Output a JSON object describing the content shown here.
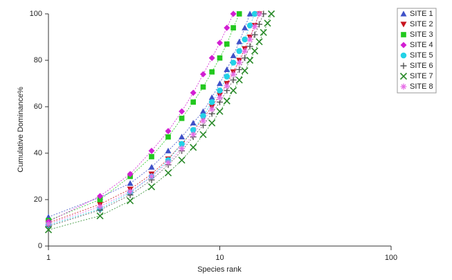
{
  "chart_data": {
    "type": "line",
    "x_label": "Species rank",
    "y_label": "Cumulative Dominance%",
    "x_log": true,
    "xlim": [
      1,
      100
    ],
    "xticks": [
      1,
      10,
      100
    ],
    "ylim": [
      0,
      100
    ],
    "yticks": [
      0,
      20,
      40,
      60,
      80,
      100
    ],
    "grid": false,
    "legend": "top-right",
    "series": [
      {
        "name": "SITE 1",
        "color": "#3f51c8",
        "marker": "triangle-up",
        "x": [
          1,
          2,
          3,
          4,
          5,
          6,
          7,
          8,
          9,
          10,
          11,
          12,
          13,
          14,
          15
        ],
        "values": [
          12.5,
          21,
          27,
          34,
          41,
          47,
          53,
          58,
          64,
          70,
          76,
          82,
          88,
          94,
          100
        ]
      },
      {
        "name": "SITE 2",
        "color": "#c8141e",
        "marker": "triangle-down",
        "x": [
          1,
          2,
          3,
          4,
          5,
          6,
          7,
          8,
          9,
          10,
          11,
          12,
          13,
          14,
          15,
          16,
          17
        ],
        "values": [
          10,
          18,
          24.5,
          31,
          37.5,
          44,
          49.5,
          55,
          60,
          65,
          70,
          75,
          80,
          85,
          90,
          95,
          100
        ]
      },
      {
        "name": "SITE 3",
        "color": "#22c81e",
        "marker": "square",
        "x": [
          1,
          2,
          3,
          4,
          5,
          6,
          7,
          8,
          9,
          10,
          11,
          12,
          13
        ],
        "values": [
          11,
          20,
          30,
          38.5,
          47,
          55,
          62,
          68.5,
          75,
          81,
          87,
          94,
          100
        ]
      },
      {
        "name": "SITE 4",
        "color": "#d21ed2",
        "marker": "diamond",
        "x": [
          1,
          2,
          3,
          4,
          5,
          6,
          7,
          8,
          9,
          10,
          11,
          12
        ],
        "values": [
          10.5,
          21.5,
          31,
          41,
          49.5,
          58,
          66,
          74,
          81,
          87.5,
          94,
          100
        ]
      },
      {
        "name": "SITE 5",
        "color": "#22d2e6",
        "marker": "circle",
        "x": [
          1,
          2,
          3,
          4,
          5,
          6,
          7,
          8,
          9,
          10,
          11,
          12,
          13,
          14,
          15,
          16
        ],
        "values": [
          9,
          16,
          23,
          30,
          37,
          44,
          50,
          56,
          62,
          67,
          73,
          79,
          84,
          89,
          95,
          100
        ]
      },
      {
        "name": "SITE 6",
        "color": "#555555",
        "marker": "plus",
        "x": [
          1,
          2,
          3,
          4,
          5,
          6,
          7,
          8,
          9,
          10,
          11,
          12,
          13,
          14,
          15,
          16,
          17,
          18
        ],
        "values": [
          8.5,
          15.5,
          22,
          28.5,
          35,
          41,
          47,
          52,
          57,
          62,
          67,
          71.5,
          76,
          81,
          86,
          91,
          95.5,
          100
        ]
      },
      {
        "name": "SITE 7",
        "color": "#2a8a2a",
        "marker": "x",
        "x": [
          1,
          2,
          3,
          4,
          5,
          6,
          7,
          8,
          9,
          10,
          11,
          12,
          13,
          14,
          15,
          16,
          17,
          18,
          19,
          20
        ],
        "values": [
          7,
          13,
          19.5,
          25.5,
          31.5,
          37,
          42.5,
          48,
          53,
          58,
          62.5,
          67,
          71.5,
          75.5,
          80,
          84,
          88,
          92,
          96,
          100
        ]
      },
      {
        "name": "SITE 8",
        "color": "#e66ee6",
        "marker": "asterisk",
        "x": [
          1,
          2,
          3,
          4,
          5,
          6,
          7,
          8,
          9,
          10,
          11,
          12,
          13,
          14,
          15,
          16,
          17
        ],
        "values": [
          9.5,
          17,
          23.5,
          30,
          36,
          42,
          48,
          54,
          59,
          64,
          69,
          74,
          79,
          84,
          89,
          94.5,
          100
        ]
      }
    ]
  }
}
